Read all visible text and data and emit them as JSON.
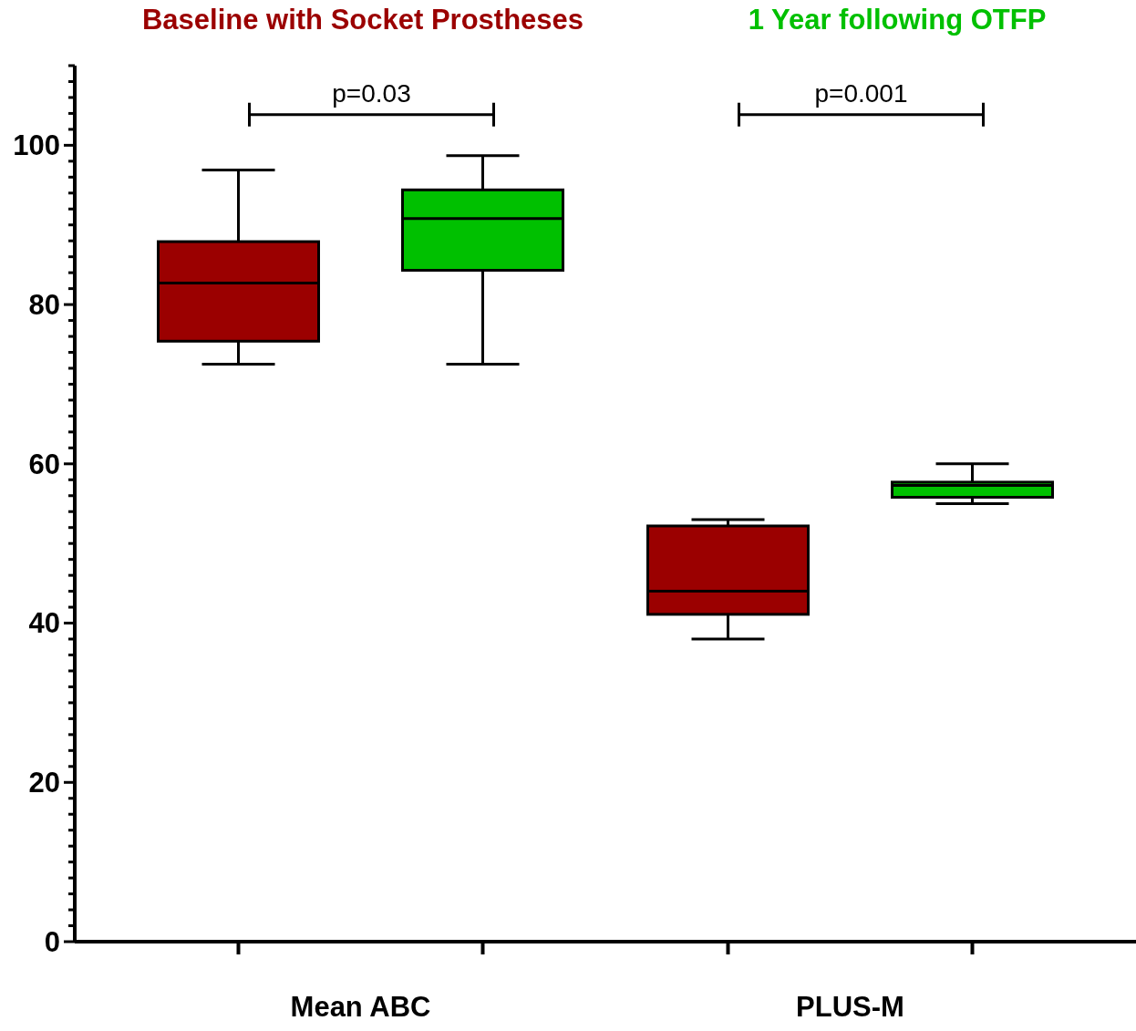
{
  "chart_data": {
    "type": "box",
    "categories": [
      "Mean ABC",
      "PLUS-M"
    ],
    "series": [
      {
        "name": "Baseline with Socket Prostheses",
        "color": "#9b0000",
        "boxes": [
          {
            "low": 72.5,
            "q1": 75.4,
            "median": 82.7,
            "q3": 87.9,
            "high": 96.9
          },
          {
            "low": 38.0,
            "q1": 41.1,
            "median": 44.0,
            "q3": 52.2,
            "high": 53.0
          }
        ]
      },
      {
        "name": "1 Year following OTFP",
        "color": "#00c000",
        "boxes": [
          {
            "low": 72.5,
            "q1": 84.3,
            "median": 90.8,
            "q3": 94.4,
            "high": 98.7
          },
          {
            "low": 55.0,
            "q1": 55.8,
            "median": 57.3,
            "q3": 57.7,
            "high": 60.0
          }
        ]
      }
    ],
    "ylim": [
      0,
      110
    ],
    "yticks": [
      0,
      {
        "value": 2,
        "label": null
      },
      {
        "value": 4,
        "label": null
      },
      {
        "value": 6,
        "label": null
      },
      {
        "value": 8,
        "label": null
      },
      {
        "value": 10,
        "label": null
      },
      {
        "value": 12,
        "label": null
      },
      {
        "value": 14,
        "label": null
      },
      {
        "value": 16,
        "label": null
      },
      {
        "value": 18,
        "label": null
      },
      20,
      {
        "value": 22,
        "label": null
      },
      {
        "value": 24,
        "label": null
      },
      {
        "value": 26,
        "label": null
      },
      {
        "value": 28,
        "label": null
      },
      {
        "value": 30,
        "label": null
      },
      {
        "value": 32,
        "label": null
      },
      {
        "value": 34,
        "label": null
      },
      {
        "value": 36,
        "label": null
      },
      {
        "value": 38,
        "label": null
      },
      40,
      {
        "value": 42,
        "label": null
      },
      {
        "value": 44,
        "label": null
      },
      {
        "value": 46,
        "label": null
      },
      {
        "value": 48,
        "label": null
      },
      {
        "value": 50,
        "label": null
      },
      {
        "value": 52,
        "label": null
      },
      {
        "value": 54,
        "label": null
      },
      {
        "value": 56,
        "label": null
      },
      {
        "value": 58,
        "label": null
      },
      60,
      {
        "value": 62,
        "label": null
      },
      {
        "value": 64,
        "label": null
      },
      {
        "value": 66,
        "label": null
      },
      {
        "value": 68,
        "label": null
      },
      {
        "value": 70,
        "label": null
      },
      {
        "value": 72,
        "label": null
      },
      {
        "value": 74,
        "label": null
      },
      {
        "value": 76,
        "label": null
      },
      {
        "value": 78,
        "label": null
      },
      80,
      {
        "value": 82,
        "label": null
      },
      {
        "value": 84,
        "label": null
      },
      {
        "value": 86,
        "label": null
      },
      {
        "value": 88,
        "label": null
      },
      {
        "value": 90,
        "label": null
      },
      {
        "value": 92,
        "label": null
      },
      {
        "value": 94,
        "label": null
      },
      {
        "value": 96,
        "label": null
      },
      {
        "value": 98,
        "label": null
      },
      100,
      {
        "value": 102,
        "label": null
      },
      {
        "value": 104,
        "label": null
      },
      {
        "value": 106,
        "label": null
      },
      {
        "value": 108,
        "label": null
      },
      {
        "value": 110,
        "label": null
      }
    ],
    "annotations": [
      "p=0.03",
      "p=0.001"
    ],
    "legend": "top",
    "grid": false
  }
}
